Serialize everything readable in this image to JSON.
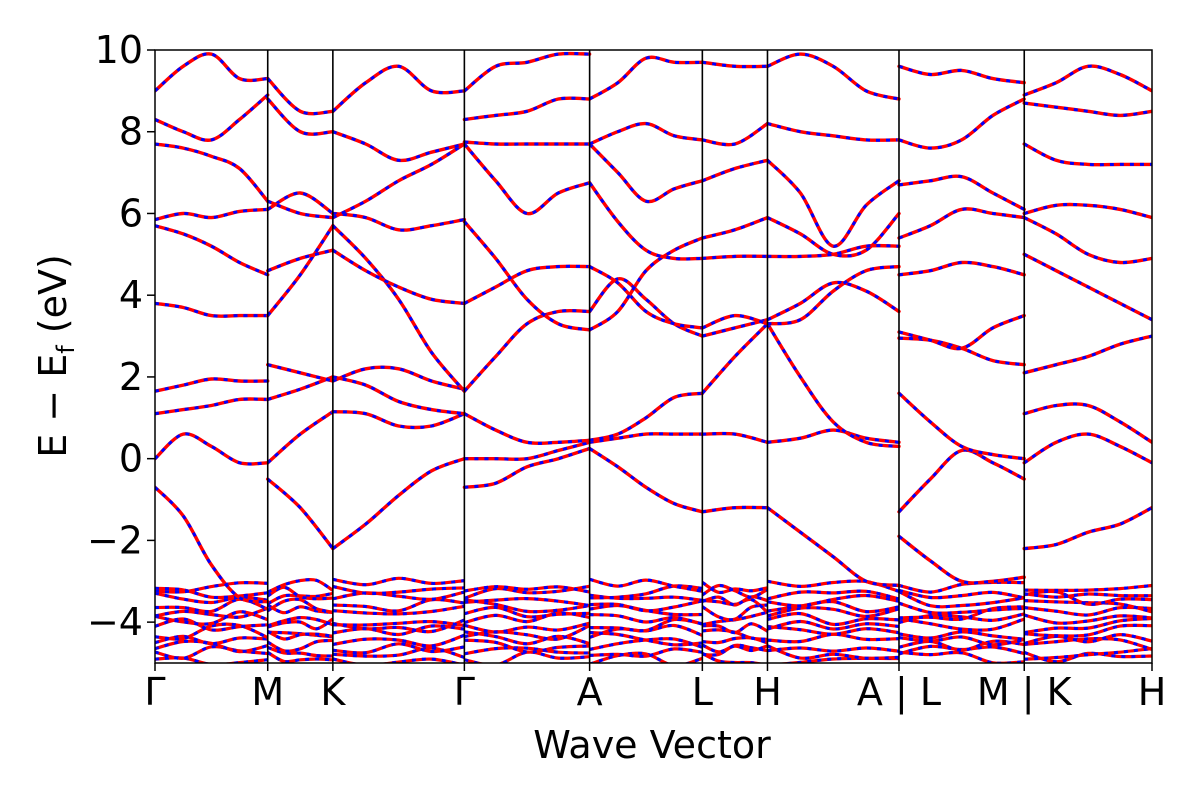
{
  "chart_data": {
    "type": "line",
    "title": "",
    "xlabel": "Wave Vector",
    "ylabel": "E − E_f (eV)",
    "ylabel_main": "E − E",
    "ylabel_sub": "f",
    "ylabel_unit": " (eV)",
    "ylim": [
      -5,
      10
    ],
    "yticks": [
      -4,
      -2,
      0,
      2,
      4,
      6,
      8,
      10
    ],
    "ytick_labels": [
      "−4",
      "−2",
      "0",
      "2",
      "4",
      "6",
      "8",
      "10"
    ],
    "grid": false,
    "legend": "none",
    "xlim": [
      0,
      7.96
    ],
    "high_symmetry_points": [
      {
        "label": "Γ",
        "x": 0.0
      },
      {
        "label": "M",
        "x": 0.9
      },
      {
        "label": "K",
        "x": 1.42
      },
      {
        "label": "Γ",
        "x": 2.47
      },
      {
        "label": "A",
        "x": 3.47
      },
      {
        "label": "L",
        "x": 4.37
      },
      {
        "label": "H",
        "x": 4.89
      },
      {
        "label": "A | L",
        "x": 5.94
      },
      {
        "label": "M | K",
        "x": 6.94
      },
      {
        "label": "H",
        "x": 7.96
      }
    ],
    "segments": [
      {
        "x0": 0.0,
        "x1": 0.9,
        "bands": [
          {
            "y": [
              -0.7,
              -1.4,
              -2.6,
              -3.4,
              -3.5
            ]
          },
          {
            "y": [
              0.0,
              0.6,
              0.3,
              -0.1,
              -0.1
            ]
          },
          {
            "y": [
              1.1,
              1.2,
              1.3,
              1.45,
              1.45
            ]
          },
          {
            "y": [
              1.65,
              1.8,
              1.95,
              1.9,
              1.9
            ]
          },
          {
            "y": [
              3.8,
              3.7,
              3.5,
              3.5,
              3.5
            ]
          },
          {
            "y": [
              5.7,
              5.5,
              5.2,
              4.8,
              4.5
            ]
          },
          {
            "y": [
              5.85,
              6.0,
              5.9,
              6.05,
              6.1
            ]
          },
          {
            "y": [
              7.7,
              7.6,
              7.4,
              7.1,
              6.3
            ]
          },
          {
            "y": [
              8.3,
              8.0,
              7.8,
              8.3,
              8.9
            ]
          },
          {
            "y": [
              9.0,
              9.6,
              9.9,
              9.3,
              9.3
            ]
          }
        ]
      },
      {
        "x0": 0.9,
        "x1": 1.42,
        "bands": [
          {
            "y": [
              -0.5,
              -1.2,
              -2.2
            ]
          },
          {
            "y": [
              -0.1,
              0.6,
              1.15
            ]
          },
          {
            "y": [
              1.45,
              1.7,
              2.0
            ]
          },
          {
            "y": [
              2.3,
              2.1,
              1.9
            ]
          },
          {
            "y": [
              3.5,
              4.5,
              5.7
            ]
          },
          {
            "y": [
              4.6,
              4.9,
              5.1
            ]
          },
          {
            "y": [
              6.1,
              6.5,
              6.0
            ]
          },
          {
            "y": [
              6.3,
              6.0,
              5.9
            ]
          },
          {
            "y": [
              8.8,
              8.0,
              8.0
            ]
          },
          {
            "y": [
              9.3,
              8.5,
              8.5
            ]
          }
        ]
      },
      {
        "x0": 1.42,
        "x1": 2.47,
        "bands": [
          {
            "y": [
              -2.2,
              -1.6,
              -0.9,
              -0.3,
              0.0
            ]
          },
          {
            "y": [
              1.15,
              1.1,
              0.8,
              0.8,
              1.1
            ]
          },
          {
            "y": [
              1.9,
              2.2,
              2.2,
              1.9,
              1.7
            ]
          },
          {
            "y": [
              2.0,
              1.8,
              1.4,
              1.2,
              1.1
            ]
          },
          {
            "y": [
              5.7,
              4.9,
              3.9,
              2.6,
              1.65
            ]
          },
          {
            "y": [
              5.1,
              4.6,
              4.2,
              3.9,
              3.8
            ]
          },
          {
            "y": [
              6.0,
              5.9,
              5.6,
              5.7,
              5.85
            ]
          },
          {
            "y": [
              5.9,
              6.3,
              6.8,
              7.2,
              7.7
            ]
          },
          {
            "y": [
              8.0,
              7.7,
              7.3,
              7.5,
              7.7
            ]
          },
          {
            "y": [
              8.5,
              9.2,
              9.6,
              9.0,
              9.0
            ]
          }
        ]
      },
      {
        "x0": 2.47,
        "x1": 3.47,
        "bands": [
          {
            "y": [
              -0.7,
              -0.6,
              -0.2,
              0.0,
              0.25
            ]
          },
          {
            "y": [
              0.0,
              0.0,
              0.0,
              0.2,
              0.4
            ]
          },
          {
            "y": [
              1.1,
              0.7,
              0.4,
              0.4,
              0.45
            ]
          },
          {
            "y": [
              1.65,
              2.5,
              3.3,
              3.6,
              3.6
            ]
          },
          {
            "y": [
              3.8,
              4.2,
              4.6,
              4.7,
              4.7
            ]
          },
          {
            "y": [
              5.8,
              4.9,
              3.9,
              3.3,
              3.15
            ]
          },
          {
            "y": [
              7.7,
              6.8,
              6.0,
              6.5,
              6.75
            ]
          },
          {
            "y": [
              7.75,
              7.7,
              7.7,
              7.7,
              7.7
            ]
          },
          {
            "y": [
              8.3,
              8.4,
              8.5,
              8.8,
              8.8
            ]
          },
          {
            "y": [
              9.0,
              9.6,
              9.7,
              9.9,
              9.9
            ]
          }
        ]
      },
      {
        "x0": 3.47,
        "x1": 4.37,
        "bands": [
          {
            "y": [
              0.25,
              -0.2,
              -0.7,
              -1.1,
              -1.3
            ]
          },
          {
            "y": [
              0.4,
              0.5,
              0.6,
              0.6,
              0.6
            ]
          },
          {
            "y": [
              0.45,
              0.6,
              1.0,
              1.5,
              1.6
            ]
          },
          {
            "y": [
              3.6,
              4.4,
              3.9,
              3.3,
              3.0
            ]
          },
          {
            "y": [
              4.7,
              4.3,
              3.6,
              3.3,
              3.2
            ]
          },
          {
            "y": [
              3.15,
              3.6,
              4.6,
              5.1,
              5.4
            ]
          },
          {
            "y": [
              6.75,
              5.8,
              5.1,
              4.9,
              4.9
            ]
          },
          {
            "y": [
              7.7,
              7.0,
              6.3,
              6.6,
              6.8
            ]
          },
          {
            "y": [
              7.7,
              8.0,
              8.2,
              7.9,
              7.8
            ]
          },
          {
            "y": [
              8.8,
              9.2,
              9.8,
              9.7,
              9.7
            ]
          }
        ]
      },
      {
        "x0": 4.37,
        "x1": 4.89,
        "bands": [
          {
            "y": [
              -1.3,
              -1.2,
              -1.2
            ]
          },
          {
            "y": [
              0.6,
              0.6,
              0.4
            ]
          },
          {
            "y": [
              1.6,
              2.5,
              3.3
            ]
          },
          {
            "y": [
              3.0,
              3.2,
              3.4
            ]
          },
          {
            "y": [
              3.2,
              3.5,
              3.3
            ]
          },
          {
            "y": [
              5.4,
              5.6,
              5.9
            ]
          },
          {
            "y": [
              4.9,
              4.95,
              4.95
            ]
          },
          {
            "y": [
              6.8,
              7.1,
              7.3
            ]
          },
          {
            "y": [
              7.8,
              7.7,
              8.2
            ]
          },
          {
            "y": [
              9.7,
              9.6,
              9.6
            ]
          }
        ]
      },
      {
        "x0": 4.89,
        "x1": 5.94,
        "bands": [
          {
            "y": [
              -1.2,
              -1.8,
              -2.4,
              -3.0,
              -3.1
            ]
          },
          {
            "y": [
              0.4,
              0.5,
              0.7,
              0.5,
              0.4
            ]
          },
          {
            "y": [
              3.3,
              2.0,
              0.9,
              0.4,
              0.3
            ]
          },
          {
            "y": [
              3.4,
              3.8,
              4.3,
              4.1,
              3.6
            ]
          },
          {
            "y": [
              3.3,
              3.4,
              4.1,
              4.6,
              4.7
            ]
          },
          {
            "y": [
              5.9,
              5.5,
              5.0,
              5.1,
              6.0
            ]
          },
          {
            "y": [
              4.95,
              4.95,
              5.0,
              5.2,
              5.2
            ]
          },
          {
            "y": [
              7.3,
              6.5,
              5.2,
              6.2,
              6.8
            ]
          },
          {
            "y": [
              8.2,
              8.0,
              7.9,
              7.8,
              7.8
            ]
          },
          {
            "y": [
              9.6,
              9.9,
              9.6,
              9.0,
              8.8
            ]
          }
        ]
      },
      {
        "x0": 5.94,
        "x1": 6.94,
        "bands": [
          {
            "y": [
              -1.3,
              -0.5,
              0.2,
              -0.1,
              -0.5
            ]
          },
          {
            "y": [
              -1.9,
              -2.5,
              -3.0,
              -3.0,
              -2.9
            ]
          },
          {
            "y": [
              1.6,
              0.9,
              0.3,
              0.1,
              0.0
            ]
          },
          {
            "y": [
              2.95,
              2.9,
              2.7,
              2.4,
              2.3
            ]
          },
          {
            "y": [
              3.1,
              2.9,
              2.7,
              3.2,
              3.5
            ]
          },
          {
            "y": [
              4.5,
              4.6,
              4.8,
              4.7,
              4.5
            ]
          },
          {
            "y": [
              5.4,
              5.7,
              6.1,
              6.0,
              5.9
            ]
          },
          {
            "y": [
              6.7,
              6.8,
              6.9,
              6.5,
              6.1
            ]
          },
          {
            "y": [
              7.8,
              7.6,
              7.8,
              8.4,
              8.8
            ]
          },
          {
            "y": [
              9.6,
              9.4,
              9.5,
              9.3,
              9.2
            ]
          }
        ]
      },
      {
        "x0": 6.94,
        "x1": 7.96,
        "bands": [
          {
            "y": [
              -2.2,
              -2.1,
              -1.8,
              -1.6,
              -1.2
            ]
          },
          {
            "y": [
              1.1,
              1.3,
              1.3,
              0.9,
              0.4
            ]
          },
          {
            "y": [
              2.1,
              2.3,
              2.5,
              2.8,
              3.0
            ]
          },
          {
            "y": [
              5.0,
              4.6,
              4.2,
              3.8,
              3.4
            ]
          },
          {
            "y": [
              5.9,
              5.5,
              5.0,
              4.8,
              4.9
            ]
          },
          {
            "y": [
              6.0,
              6.2,
              6.2,
              6.1,
              5.9
            ]
          },
          {
            "y": [
              7.7,
              7.3,
              7.2,
              7.2,
              7.2
            ]
          },
          {
            "y": [
              8.7,
              8.6,
              8.5,
              8.4,
              8.5
            ]
          },
          {
            "y": [
              8.9,
              9.2,
              9.6,
              9.4,
              9.0
            ]
          },
          {
            "y": [
              -0.1,
              0.4,
              0.6,
              0.3,
              -0.1
            ]
          }
        ]
      }
    ],
    "flat_band_range": [
      -5,
      -3
    ],
    "colors": {
      "band": "#ff0000",
      "band_overlay": "#0000ff",
      "divider": "#000000"
    }
  }
}
